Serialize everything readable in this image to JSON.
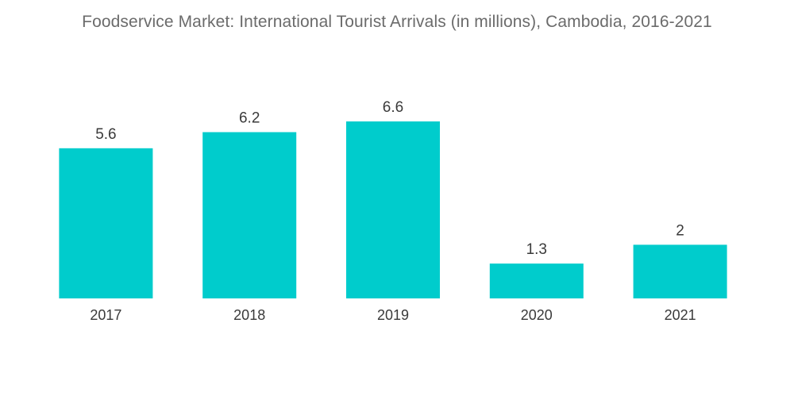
{
  "chart_data": {
    "type": "bar",
    "title": "Foodservice Market: International Tourist Arrivals (in millions), Cambodia, 2016-2021",
    "xlabel": "",
    "ylabel": "",
    "categories": [
      "2017",
      "2018",
      "2019",
      "2020",
      "2021"
    ],
    "values": [
      5.6,
      6.2,
      6.6,
      1.3,
      2
    ],
    "value_labels": [
      "5.6",
      "6.2",
      "6.6",
      "1.3",
      "2"
    ],
    "ylim": [
      0,
      6.6
    ],
    "grid": false,
    "legend": "none",
    "bar_color": "#00cccc"
  }
}
